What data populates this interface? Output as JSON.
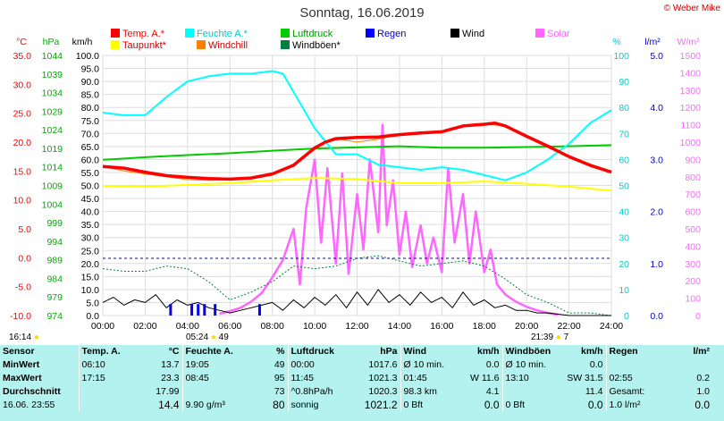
{
  "title": "Sonntag, 16.06.2019",
  "copyright": "© Weber Mike",
  "legend": [
    {
      "label": "Temp. A.*",
      "color": "#ff0000"
    },
    {
      "label": "Feuchte A.*",
      "color": "#00ffff"
    },
    {
      "label": "Luftdruck",
      "color": "#00cc00"
    },
    {
      "label": "Regen",
      "color": "#0000ff"
    },
    {
      "label": "Wind",
      "color": "#000000"
    },
    {
      "label": "Solar",
      "color": "#ff66ff"
    },
    {
      "label": "Taupunkt*",
      "color": "#ffff00"
    },
    {
      "label": "Windchill",
      "color": "#ff8000"
    },
    {
      "label": "Windböen*",
      "color": "#008040"
    }
  ],
  "chart_data": {
    "type": "line",
    "x_unit": "hours",
    "x_ticks": [
      "00:00",
      "02:00",
      "04:00",
      "06:00",
      "08:00",
      "10:00",
      "12:00",
      "14:00",
      "16:00",
      "18:00",
      "20:00",
      "22:00",
      "24:00"
    ],
    "sunrise": "05:24",
    "sunrise_val": "49",
    "sunset": "21:39",
    "sunset_val": "7",
    "corner_time": "16:14",
    "axes": {
      "temp": {
        "label": "°C",
        "range": [
          -10,
          35
        ],
        "ticks": [
          "35.0",
          "30.0",
          "25.0",
          "20.0",
          "15.0",
          "10.0",
          "5.0",
          "0.0",
          "-5.0",
          "-10.0"
        ]
      },
      "pressure": {
        "label": "hPa",
        "range": [
          974,
          1045
        ],
        "ticks": [
          "1044",
          "1039",
          "1034",
          "1029",
          "1024",
          "1019",
          "1014",
          "1009",
          "1004",
          "999",
          "994",
          "989",
          "984",
          "979",
          "974"
        ]
      },
      "wind": {
        "label": "km/h",
        "range": [
          0,
          100
        ],
        "ticks": [
          "100.0",
          "95.0",
          "90.0",
          "85.0",
          "80.0",
          "75.0",
          "70.0",
          "65.0",
          "60.0",
          "55.0",
          "50.0",
          "45.0",
          "40.0",
          "35.0",
          "30.0",
          "25.0",
          "20.0",
          "15.0",
          "10.0",
          "5.0",
          "0.0"
        ]
      },
      "humidity": {
        "label": "%",
        "range": [
          0,
          100
        ],
        "ticks": [
          "100",
          "90",
          "80",
          "70",
          "60",
          "50",
          "40",
          "30",
          "20",
          "10",
          "0"
        ]
      },
      "rain": {
        "label": "l/m²",
        "range": [
          0,
          5
        ],
        "ticks": [
          "5.0",
          "4.0",
          "3.0",
          "2.0",
          "1.0",
          "0.0"
        ]
      },
      "solar": {
        "label": "W/m²",
        "range": [
          0,
          1500
        ],
        "ticks": [
          "1500",
          "1400",
          "1300",
          "1200",
          "1100",
          "1000",
          "900",
          "800",
          "700",
          "600",
          "500",
          "400",
          "300",
          "200",
          "100",
          "0"
        ]
      }
    },
    "series": [
      {
        "name": "Temp. A.",
        "axis": "temp",
        "color": "#ff0000",
        "x": [
          0,
          1,
          2,
          3,
          4,
          5,
          6,
          7,
          8,
          9,
          10,
          10.5,
          11,
          12,
          13,
          14,
          15,
          16,
          17,
          18,
          18.5,
          19,
          20,
          21,
          22,
          23,
          24
        ],
        "y": [
          15.8,
          15.5,
          14.8,
          14.2,
          13.9,
          13.7,
          13.6,
          13.8,
          14.5,
          16.0,
          19.0,
          20.0,
          20.6,
          20.8,
          20.9,
          21.3,
          21.6,
          21.8,
          22.8,
          23.1,
          23.3,
          22.8,
          21.0,
          19.3,
          17.5,
          16.0,
          14.8
        ]
      },
      {
        "name": "Feuchte A.",
        "axis": "humidity",
        "color": "#00ffff",
        "x": [
          0,
          1,
          2,
          3,
          4,
          5,
          6,
          7,
          8,
          8.5,
          9,
          10,
          11,
          12,
          13,
          14,
          15,
          16,
          17,
          18,
          19,
          20,
          21,
          22,
          23,
          24
        ],
        "y": [
          78,
          77,
          77,
          84,
          90,
          92,
          93,
          93,
          94,
          93,
          86,
          72,
          62,
          62,
          58,
          57,
          56,
          57,
          56,
          54,
          52,
          55,
          60,
          66,
          74,
          79
        ]
      },
      {
        "name": "Luftdruck",
        "axis": "pressure",
        "color": "#00cc00",
        "x": [
          0,
          2,
          4,
          6,
          8,
          10,
          12,
          14,
          16,
          18,
          20,
          22,
          24
        ],
        "y": [
          1016.5,
          1017.2,
          1017.8,
          1018.3,
          1019.0,
          1019.6,
          1019.9,
          1020.2,
          1019.8,
          1019.8,
          1020.0,
          1020.2,
          1020.5
        ]
      },
      {
        "name": "Taupunkt",
        "axis": "temp",
        "color": "#ffff00",
        "x": [
          0,
          2,
          4,
          6,
          8,
          10,
          12,
          14,
          16,
          18,
          20,
          22,
          24
        ],
        "y": [
          12.4,
          12.3,
          12.6,
          12.9,
          13.4,
          13.8,
          13.6,
          12.9,
          12.9,
          13.2,
          12.8,
          12.3,
          11.6
        ]
      },
      {
        "name": "Windchill",
        "axis": "temp",
        "color": "#ff8000",
        "x": [
          0,
          1,
          2,
          3,
          4,
          5,
          6,
          7,
          8,
          9,
          10,
          11,
          12,
          13,
          14,
          15,
          16,
          17,
          18,
          19,
          20,
          21,
          22,
          23,
          24
        ],
        "y": [
          15.8,
          15.0,
          14.5,
          14.0,
          13.5,
          13.4,
          13.5,
          13.8,
          14.5,
          16.0,
          19.2,
          20.6,
          20.0,
          20.5,
          21.3,
          21.6,
          21.8,
          22.8,
          23.1,
          22.8,
          21.0,
          19.3,
          17.5,
          15.8,
          14.7
        ]
      },
      {
        "name": "Wind",
        "axis": "wind",
        "color": "#000000",
        "x": [
          0,
          0.5,
          1,
          1.5,
          2,
          2.5,
          3,
          3.5,
          4,
          4.5,
          5,
          5.5,
          6,
          6.5,
          7,
          7.5,
          8,
          8.5,
          9,
          9.5,
          10,
          10.5,
          11,
          11.5,
          12,
          12.5,
          13,
          13.5,
          14,
          14.5,
          15,
          15.5,
          16,
          16.5,
          17,
          17.5,
          18,
          18.5,
          19,
          19.5,
          20,
          20.5,
          21,
          22,
          23,
          24
        ],
        "y": [
          5,
          7,
          4,
          6,
          5,
          8,
          3,
          6,
          4,
          5,
          3,
          2,
          1,
          2,
          3,
          4,
          5,
          2,
          6,
          3,
          7,
          4,
          8,
          3,
          9,
          4,
          10,
          5,
          8,
          4,
          9,
          5,
          7,
          3,
          9,
          4,
          6,
          3,
          4,
          2,
          2,
          1,
          1,
          0,
          0,
          0
        ]
      },
      {
        "name": "Windböen",
        "axis": "wind",
        "color": "#008040",
        "x": [
          0,
          1,
          2,
          3,
          4,
          5,
          6,
          7,
          8,
          9,
          10,
          11,
          12,
          13,
          14,
          15,
          16,
          17,
          18,
          19,
          20,
          21,
          22,
          23,
          24
        ],
        "y": [
          18,
          17,
          17,
          19,
          18,
          13,
          6,
          9,
          13,
          19,
          18,
          19,
          22,
          23,
          21,
          19,
          20,
          21,
          19,
          14,
          8,
          5,
          1,
          1,
          0
        ]
      },
      {
        "name": "Solar",
        "axis": "solar",
        "color": "#ff66ff",
        "x": [
          5.5,
          6,
          6.5,
          7,
          7.5,
          8,
          8.5,
          9,
          9.3,
          9.6,
          10,
          10.3,
          10.6,
          11,
          11.3,
          11.6,
          12,
          12.3,
          12.6,
          13,
          13.2,
          13.4,
          13.7,
          14,
          14.3,
          14.6,
          15,
          15.3,
          15.6,
          16,
          16.3,
          16.6,
          17,
          17.3,
          17.6,
          18,
          18.3,
          18.6,
          19,
          19.5,
          20,
          20.5,
          21,
          21.5
        ],
        "y": [
          10,
          25,
          45,
          80,
          130,
          220,
          320,
          500,
          180,
          620,
          900,
          420,
          850,
          300,
          820,
          240,
          700,
          380,
          900,
          480,
          1100,
          520,
          780,
          350,
          600,
          280,
          520,
          300,
          450,
          250,
          850,
          420,
          700,
          300,
          600,
          250,
          380,
          180,
          120,
          80,
          50,
          30,
          15,
          5
        ]
      },
      {
        "name": "Regen",
        "axis": "rain",
        "color": "#0000ff",
        "x": [
          3.2,
          4.2,
          4.5,
          4.8,
          5.3,
          7.4
        ],
        "y": [
          0.22,
          0.22,
          0.22,
          0.22,
          0.22,
          0.22
        ]
      }
    ]
  },
  "stats": {
    "headers": {
      "sensor": "Sensor",
      "temp": "Temp. A.",
      "temp_unit": "°C",
      "hum": "Feuchte A.",
      "hum_unit": "%",
      "press": "Luftdruck",
      "press_unit": "hPa",
      "wind": "Wind",
      "wind_unit": "km/h",
      "gust": "Windböen",
      "gust_unit": "km/h",
      "rain": "Regen",
      "rain_unit": "l/m²"
    },
    "min": {
      "label": "MinWert",
      "temp_time": "06:10",
      "temp": "13.7",
      "hum_time": "19:05",
      "hum": "49",
      "press_time": "00:00",
      "press": "1017.6",
      "wind_time": "Ø 10 min.",
      "wind": "0.0",
      "gust_time": "Ø 10 min.",
      "gust": "0.0",
      "rain_time": "",
      "rain": ""
    },
    "max": {
      "label": "MaxWert",
      "temp_time": "17:15",
      "temp": "23.3",
      "hum_time": "08:45",
      "hum": "95",
      "press_time": "11:45",
      "press": "1021.3",
      "wind_time": "01:45",
      "wind": "W 11.6",
      "gust_time": "13:10",
      "gust": "SW 31.5",
      "rain_time": "02:55",
      "rain": "0.2"
    },
    "avg": {
      "label": "Durchschnitt",
      "temp": "17.99",
      "hum": "73",
      "press_time": "^0.8hPa/h",
      "press": "1020.3",
      "wind_time": "98.3 km",
      "wind": "4.1",
      "gust": "11.4",
      "rain_time": "Gesamt:",
      "rain": "1.0"
    },
    "current": {
      "label": "16.06. 23:55",
      "temp": "14.4",
      "hum_time": "9.90 g/m³",
      "hum": "80",
      "press_time": "sonnig",
      "press": "1021.2",
      "wind_time": "0 Bft",
      "wind": "0.0",
      "gust_time": "0 Bft",
      "gust": "0.0",
      "rain_time": "1.0 l/m²",
      "rain": "0.0"
    }
  }
}
